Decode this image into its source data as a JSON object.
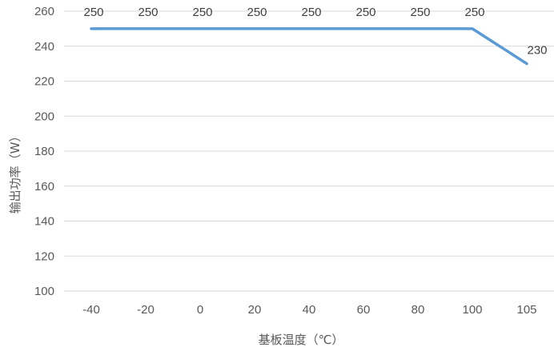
{
  "chart_data": {
    "type": "line",
    "categories": [
      "-40",
      "-20",
      "0",
      "20",
      "40",
      "60",
      "80",
      "100",
      "105"
    ],
    "series": [
      {
        "values": [
          250,
          250,
          250,
          250,
          250,
          250,
          250,
          250,
          230
        ],
        "color": "#5b9bd5"
      }
    ],
    "data_labels": [
      "250",
      "250",
      "250",
      "250",
      "250",
      "250",
      "250",
      "250",
      "230"
    ],
    "xlabel": "基板温度（℃）",
    "ylabel": "输出功率（W）",
    "ylim": [
      100,
      260
    ],
    "yticks": [
      100,
      120,
      140,
      160,
      180,
      200,
      220,
      240,
      260
    ],
    "grid": "horizontal",
    "legend": "none"
  }
}
